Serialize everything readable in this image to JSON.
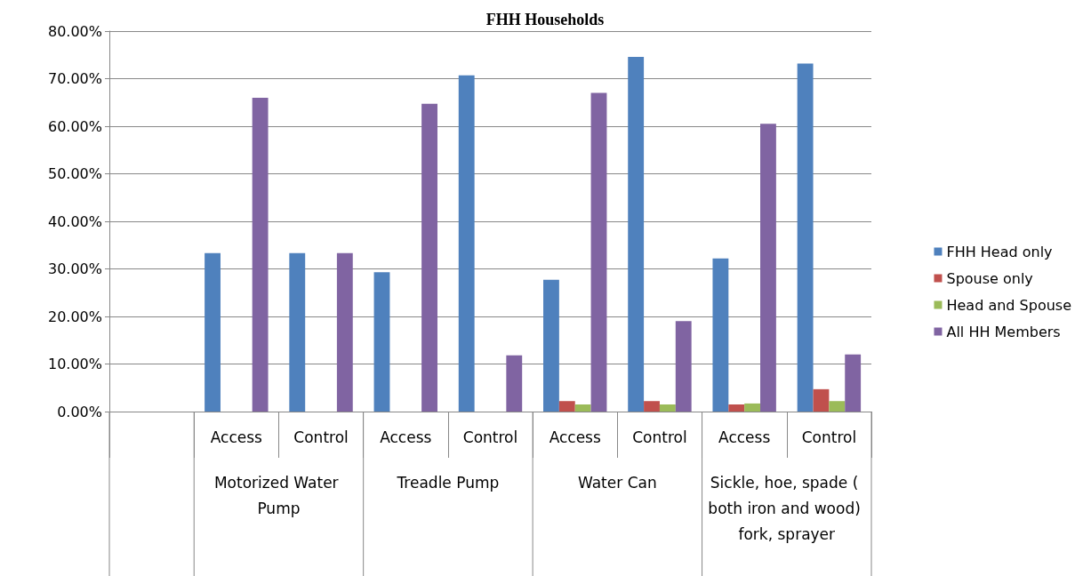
{
  "chart_data": {
    "type": "bar",
    "title": "FHH Households",
    "categories": [
      null,
      "Access",
      "Control",
      "Access",
      "Control",
      "Access",
      "Control",
      "Access",
      "Control"
    ],
    "annotations": [
      "Motorized Water Pump",
      "Treadle Pump",
      "Water Can",
      "Sickle, hoe, spade ( both iron and wood) fork, sprayer"
    ],
    "series": [
      {
        "name": "FHH Head only",
        "color": "#4f81bd",
        "values": [
          null,
          33.3,
          33.3,
          29.3,
          70.7,
          27.7,
          74.6,
          32.2,
          73.2
        ]
      },
      {
        "name": "Spouse only",
        "color": "#c0504d",
        "values": [
          null,
          null,
          null,
          null,
          null,
          2.2,
          2.2,
          1.5,
          4.7
        ]
      },
      {
        "name": "Head and Spouse",
        "color": "#9bbb59",
        "values": [
          null,
          null,
          null,
          null,
          null,
          1.5,
          1.5,
          1.7,
          2.2
        ]
      },
      {
        "name": "All HH Members",
        "color": "#8064a2",
        "values": [
          null,
          66,
          33.3,
          64.7,
          11.8,
          67,
          19,
          60.5,
          12
        ]
      }
    ],
    "ylim": [
      0,
      80
    ],
    "yticks": [
      {
        "value": 0,
        "label": "0.00%"
      },
      {
        "value": 10,
        "label": "10.00%"
      },
      {
        "value": 20,
        "label": "20.00%"
      },
      {
        "value": 30,
        "label": "30.00%"
      },
      {
        "value": 40,
        "label": "40.00%"
      },
      {
        "value": 50,
        "label": "50.00%"
      },
      {
        "value": 60,
        "label": "60.00%"
      },
      {
        "value": 70,
        "label": "70.00%"
      },
      {
        "value": 80,
        "label": "80.00%"
      }
    ],
    "grid": "y",
    "legend": "right"
  }
}
